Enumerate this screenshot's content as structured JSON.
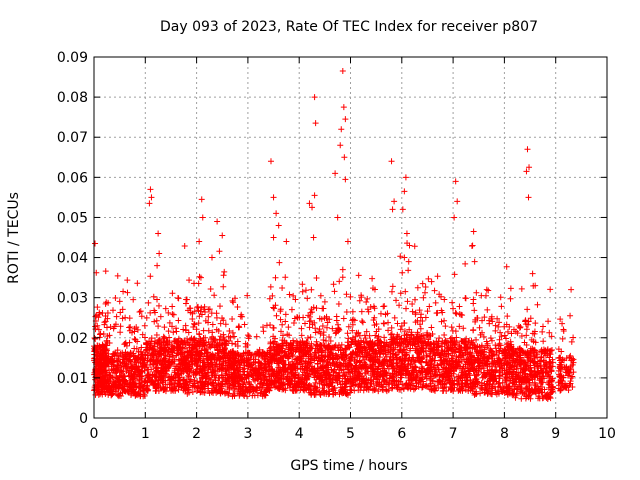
{
  "chart_data": {
    "type": "scatter",
    "title": "Day 093 of 2023, Rate Of TEC Index for receiver p807",
    "xlabel": "GPS time / hours",
    "ylabel": "ROTI / TECUs",
    "xlim": [
      0,
      10
    ],
    "ylim": [
      0,
      0.09
    ],
    "xticks": [
      "0",
      "1",
      "2",
      "3",
      "4",
      "5",
      "6",
      "7",
      "8",
      "9",
      "10"
    ],
    "yticks": [
      "0",
      "0.01",
      "0.02",
      "0.03",
      "0.04",
      "0.05",
      "0.06",
      "0.07",
      "0.08",
      "0.09"
    ],
    "grid": true,
    "marker": "+",
    "color": "#ff0000",
    "series": [
      {
        "name": "ROTI",
        "clusters": [
          {
            "x": [
              0.0,
              0.25
            ],
            "base": 0.012,
            "spread": 0.009,
            "n": 260
          },
          {
            "x": [
              0.25,
              1.0
            ],
            "base": 0.011,
            "spread": 0.008,
            "n": 420
          },
          {
            "x": [
              1.0,
              1.8
            ],
            "base": 0.013,
            "spread": 0.009,
            "n": 480
          },
          {
            "x": [
              1.8,
              2.6
            ],
            "base": 0.013,
            "spread": 0.01,
            "n": 480
          },
          {
            "x": [
              2.6,
              3.4
            ],
            "base": 0.011,
            "spread": 0.008,
            "n": 420
          },
          {
            "x": [
              3.4,
              4.2
            ],
            "base": 0.013,
            "spread": 0.009,
            "n": 460
          },
          {
            "x": [
              4.2,
              5.0
            ],
            "base": 0.012,
            "spread": 0.009,
            "n": 440
          },
          {
            "x": [
              5.0,
              5.8
            ],
            "base": 0.013,
            "spread": 0.009,
            "n": 440
          },
          {
            "x": [
              5.8,
              6.6
            ],
            "base": 0.014,
            "spread": 0.01,
            "n": 460
          },
          {
            "x": [
              6.6,
              7.4
            ],
            "base": 0.013,
            "spread": 0.009,
            "n": 440
          },
          {
            "x": [
              7.4,
              8.2
            ],
            "base": 0.012,
            "spread": 0.009,
            "n": 420
          },
          {
            "x": [
              8.2,
              8.95
            ],
            "base": 0.011,
            "spread": 0.009,
            "n": 380
          },
          {
            "x": [
              9.05,
              9.35
            ],
            "base": 0.011,
            "spread": 0.006,
            "n": 90
          }
        ],
        "spikes": [
          {
            "x": 0.02,
            "y": 0.0435
          },
          {
            "x": 1.1,
            "y": 0.057
          },
          {
            "x": 1.12,
            "y": 0.055
          },
          {
            "x": 1.08,
            "y": 0.0535
          },
          {
            "x": 1.25,
            "y": 0.046
          },
          {
            "x": 1.27,
            "y": 0.041
          },
          {
            "x": 1.23,
            "y": 0.038
          },
          {
            "x": 2.1,
            "y": 0.0545
          },
          {
            "x": 2.12,
            "y": 0.05
          },
          {
            "x": 2.05,
            "y": 0.044
          },
          {
            "x": 2.3,
            "y": 0.04
          },
          {
            "x": 2.4,
            "y": 0.049
          },
          {
            "x": 2.5,
            "y": 0.0455
          },
          {
            "x": 3.45,
            "y": 0.064
          },
          {
            "x": 3.5,
            "y": 0.055
          },
          {
            "x": 3.55,
            "y": 0.051
          },
          {
            "x": 3.6,
            "y": 0.048
          },
          {
            "x": 3.75,
            "y": 0.044
          },
          {
            "x": 3.5,
            "y": 0.045
          },
          {
            "x": 4.2,
            "y": 0.0535
          },
          {
            "x": 4.25,
            "y": 0.0525
          },
          {
            "x": 4.3,
            "y": 0.0555
          },
          {
            "x": 4.3,
            "y": 0.08
          },
          {
            "x": 4.32,
            "y": 0.0735
          },
          {
            "x": 4.28,
            "y": 0.045
          },
          {
            "x": 4.7,
            "y": 0.061
          },
          {
            "x": 4.75,
            "y": 0.05
          },
          {
            "x": 4.8,
            "y": 0.068
          },
          {
            "x": 4.82,
            "y": 0.072
          },
          {
            "x": 4.85,
            "y": 0.0865
          },
          {
            "x": 4.87,
            "y": 0.0775
          },
          {
            "x": 4.9,
            "y": 0.0745
          },
          {
            "x": 4.88,
            "y": 0.065
          },
          {
            "x": 4.9,
            "y": 0.0595
          },
          {
            "x": 4.95,
            "y": 0.044
          },
          {
            "x": 4.85,
            "y": 0.037
          },
          {
            "x": 5.8,
            "y": 0.064
          },
          {
            "x": 5.85,
            "y": 0.054
          },
          {
            "x": 5.82,
            "y": 0.052
          },
          {
            "x": 6.05,
            "y": 0.0565
          },
          {
            "x": 6.08,
            "y": 0.06
          },
          {
            "x": 6.02,
            "y": 0.052
          },
          {
            "x": 6.1,
            "y": 0.046
          },
          {
            "x": 6.15,
            "y": 0.043
          },
          {
            "x": 6.05,
            "y": 0.04
          },
          {
            "x": 7.05,
            "y": 0.059
          },
          {
            "x": 7.08,
            "y": 0.054
          },
          {
            "x": 7.02,
            "y": 0.05
          },
          {
            "x": 7.4,
            "y": 0.0465
          },
          {
            "x": 7.38,
            "y": 0.043
          },
          {
            "x": 7.42,
            "y": 0.039
          },
          {
            "x": 8.45,
            "y": 0.067
          },
          {
            "x": 8.48,
            "y": 0.0625
          },
          {
            "x": 8.43,
            "y": 0.0615
          },
          {
            "x": 8.47,
            "y": 0.055
          },
          {
            "x": 8.55,
            "y": 0.036
          },
          {
            "x": 8.6,
            "y": 0.033
          },
          {
            "x": 9.3,
            "y": 0.032
          },
          {
            "x": 9.28,
            "y": 0.0255
          }
        ]
      }
    ]
  }
}
